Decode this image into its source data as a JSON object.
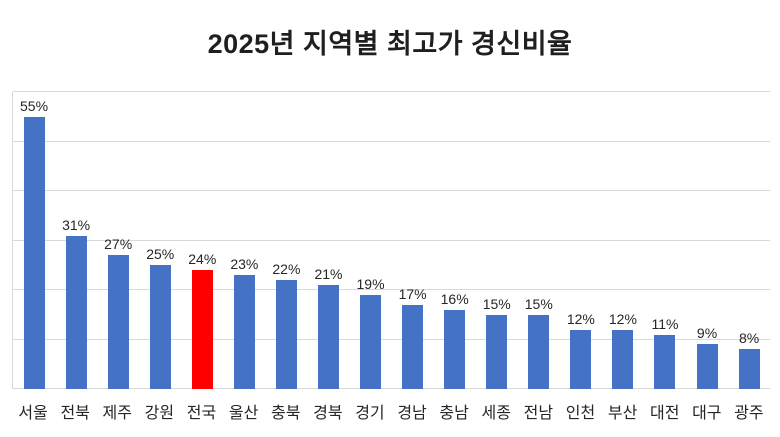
{
  "chart_data": {
    "type": "bar",
    "title": "2025년 지역별 최고가 경신비율",
    "categories": [
      "서울",
      "전북",
      "제주",
      "강원",
      "전국",
      "울산",
      "충북",
      "경북",
      "경기",
      "경남",
      "충남",
      "세종",
      "전남",
      "인천",
      "부산",
      "대전",
      "대구",
      "광주"
    ],
    "values": [
      55,
      31,
      27,
      25,
      24,
      23,
      22,
      21,
      19,
      17,
      16,
      15,
      15,
      12,
      12,
      11,
      9,
      8
    ],
    "data_labels": [
      "55%",
      "31%",
      "27%",
      "25%",
      "24%",
      "23%",
      "22%",
      "21%",
      "19%",
      "17%",
      "16%",
      "15%",
      "15%",
      "12%",
      "12%",
      "11%",
      "9%",
      "8%"
    ],
    "highlight_category": "전국",
    "highlight_index": 4,
    "bar_color": "#4472C4",
    "highlight_color": "#FF0000",
    "gridline_color": "#d9d9d9",
    "grid": true,
    "legend": "none",
    "xlabel": "",
    "ylabel": "",
    "ylim": [
      0,
      60
    ],
    "gridline_step": 10
  }
}
